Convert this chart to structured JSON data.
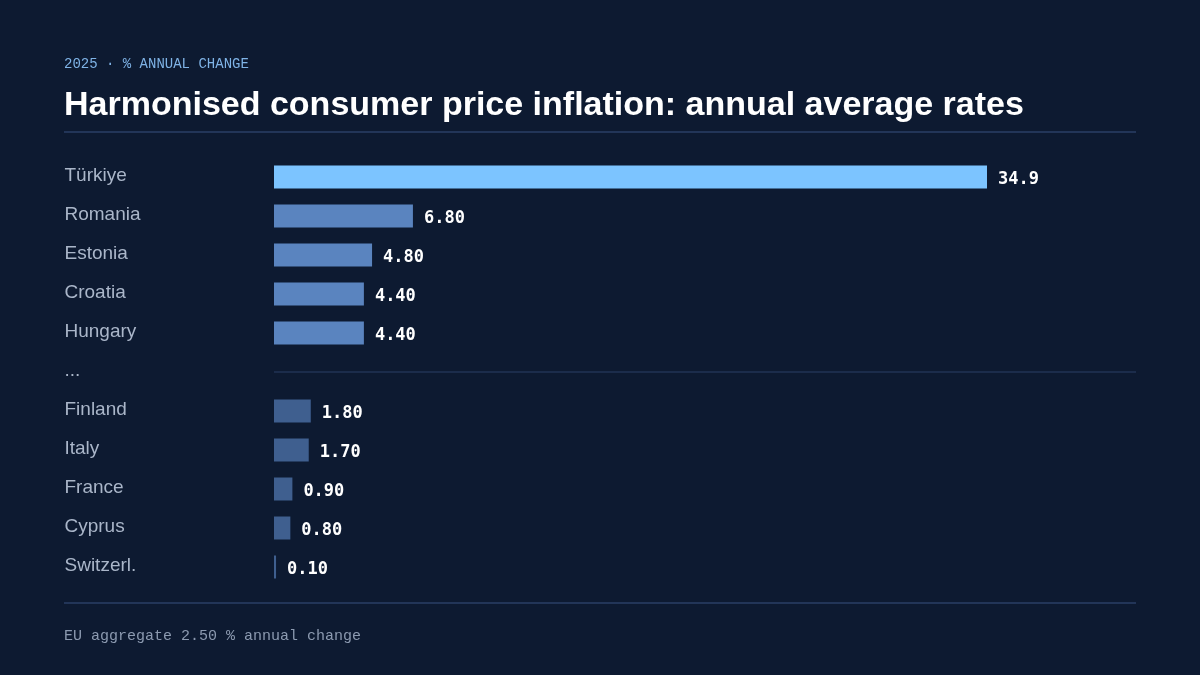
{
  "chart_data": {
    "type": "bar",
    "orientation": "horizontal",
    "title": "Harmonised consumer price inflation: annual average rates",
    "subtitle": "2025 · % ANNUAL CHANGE",
    "categories": [
      "Türkiye",
      "Romania",
      "Estonia",
      "Croatia",
      "Hungary",
      "...",
      "Finland",
      "Italy",
      "France",
      "Cyprus",
      "Switzerl."
    ],
    "values": [
      34.9,
      6.8,
      4.8,
      4.4,
      4.4,
      null,
      1.8,
      1.7,
      0.9,
      0.8,
      0.1
    ],
    "value_labels": [
      "34.9",
      "6.80",
      "4.80",
      "4.40",
      "4.40",
      null,
      "1.80",
      "1.70",
      "0.90",
      "0.80",
      "0.10"
    ],
    "colors": [
      "#7cc4ff",
      "#5a84bf",
      "#5a84bf",
      "#5a84bf",
      "#5a84bf",
      null,
      "#3f5f8f",
      "#3f5f8f",
      "#3f5f8f",
      "#3f5f8f",
      "#3f5f8f"
    ],
    "ref_lines": [
      {
        "axis": "y",
        "value": "...",
        "color": "#2a3f66"
      }
    ],
    "tick_labels": "y",
    "annotations": [
      "EU aggregate 2.50 % annual change"
    ]
  }
}
